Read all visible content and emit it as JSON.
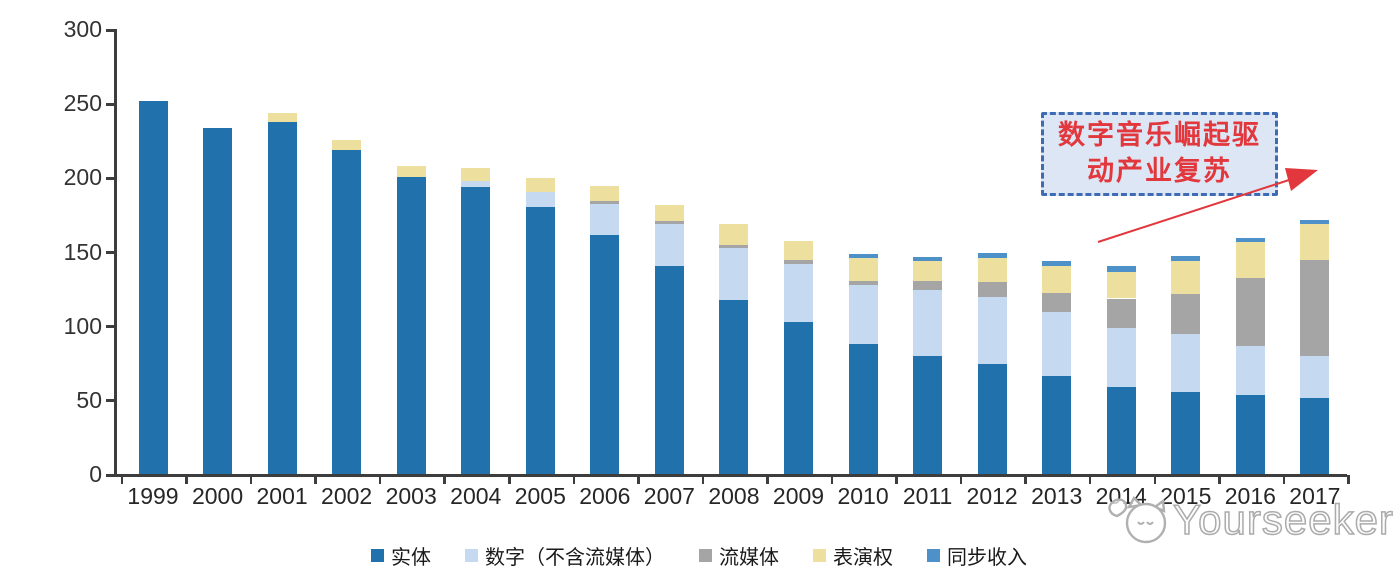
{
  "chart_data": {
    "type": "bar",
    "stacked": true,
    "title": "",
    "xlabel": "",
    "ylabel": "",
    "grid": false,
    "legend_position": "bottom",
    "ylim": [
      0,
      300
    ],
    "yticks": [
      0,
      50,
      100,
      150,
      200,
      250,
      300
    ],
    "categories": [
      "1999",
      "2000",
      "2001",
      "2002",
      "2003",
      "2004",
      "2005",
      "2006",
      "2007",
      "2008",
      "2009",
      "2010",
      "2011",
      "2012",
      "2013",
      "2014",
      "2015",
      "2016",
      "2017"
    ],
    "series": [
      {
        "key": "physical",
        "name": "实体",
        "color": "#2171AC",
        "values": [
          252,
          234,
          238,
          219,
          201,
          194,
          181,
          162,
          141,
          118,
          103,
          88,
          80,
          75,
          67,
          59,
          56,
          54,
          52
        ]
      },
      {
        "key": "digital-excl-streaming",
        "name": "数字（不含流媒体）",
        "color": "#C5D9F0",
        "values": [
          0,
          0,
          0,
          0,
          0,
          4,
          10,
          21,
          28,
          35,
          39,
          40,
          45,
          45,
          43,
          40,
          39,
          33,
          28
        ]
      },
      {
        "key": "streaming",
        "name": "流媒体",
        "color": "#A5A5A5",
        "values": [
          0,
          0,
          0,
          0,
          0,
          0,
          0,
          2,
          2,
          2,
          3,
          3,
          6,
          10,
          13,
          20,
          27,
          46,
          65
        ]
      },
      {
        "key": "performance-rights",
        "name": "表演权",
        "color": "#EDDF9E",
        "values": [
          0,
          0,
          6,
          7,
          7,
          9,
          9,
          10,
          11,
          14,
          13,
          15,
          13,
          16,
          18,
          18,
          22,
          24,
          24
        ]
      },
      {
        "key": "sync-revenue",
        "name": "同步收入",
        "color": "#4E90C8",
        "values": [
          0,
          0,
          0,
          0,
          0,
          0,
          0,
          0,
          0,
          0,
          0,
          3,
          3,
          3.5,
          3.5,
          4,
          3.5,
          3,
          3
        ]
      }
    ]
  },
  "annotation": {
    "full_text": "数字音乐崛起驱动产业复苏",
    "lines": [
      "数字音乐崛起驱",
      "动产业复苏"
    ],
    "text_color": "#E2373C",
    "border_color": "#3F6BB4",
    "bg_color": "#DCE6F4",
    "arrow_color": "#E2373C"
  },
  "watermark": {
    "text": "Yourseeker"
  },
  "colors": {
    "axis": "#3D3D3D"
  }
}
